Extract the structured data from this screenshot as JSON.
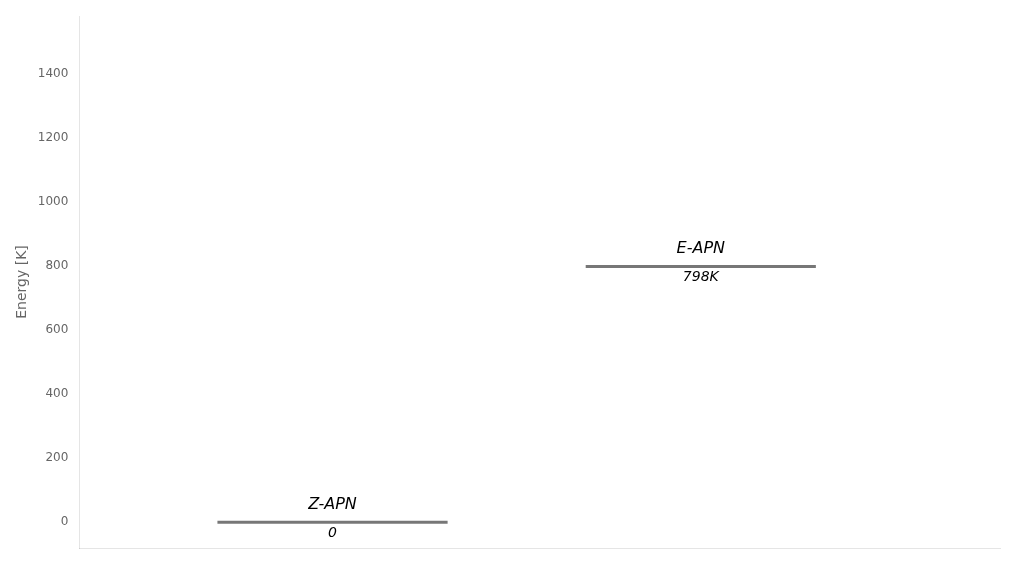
{
  "chart_data": {
    "type": "levels",
    "ylabel": "Energy [K]",
    "xlim": [
      0,
      10
    ],
    "ylim": [
      -80,
      1580
    ],
    "yticks": [
      0,
      200,
      400,
      600,
      800,
      1000,
      1200,
      1400
    ],
    "grid": false,
    "tick_labels": "y",
    "color": "#777777",
    "levels": [
      {
        "name": "Z-APN",
        "x": [
          1.5,
          4.0
        ],
        "y": 0,
        "label": "0"
      },
      {
        "name": "E-APN",
        "x": [
          5.5,
          8.0
        ],
        "y": 798,
        "label": "798K"
      }
    ]
  }
}
